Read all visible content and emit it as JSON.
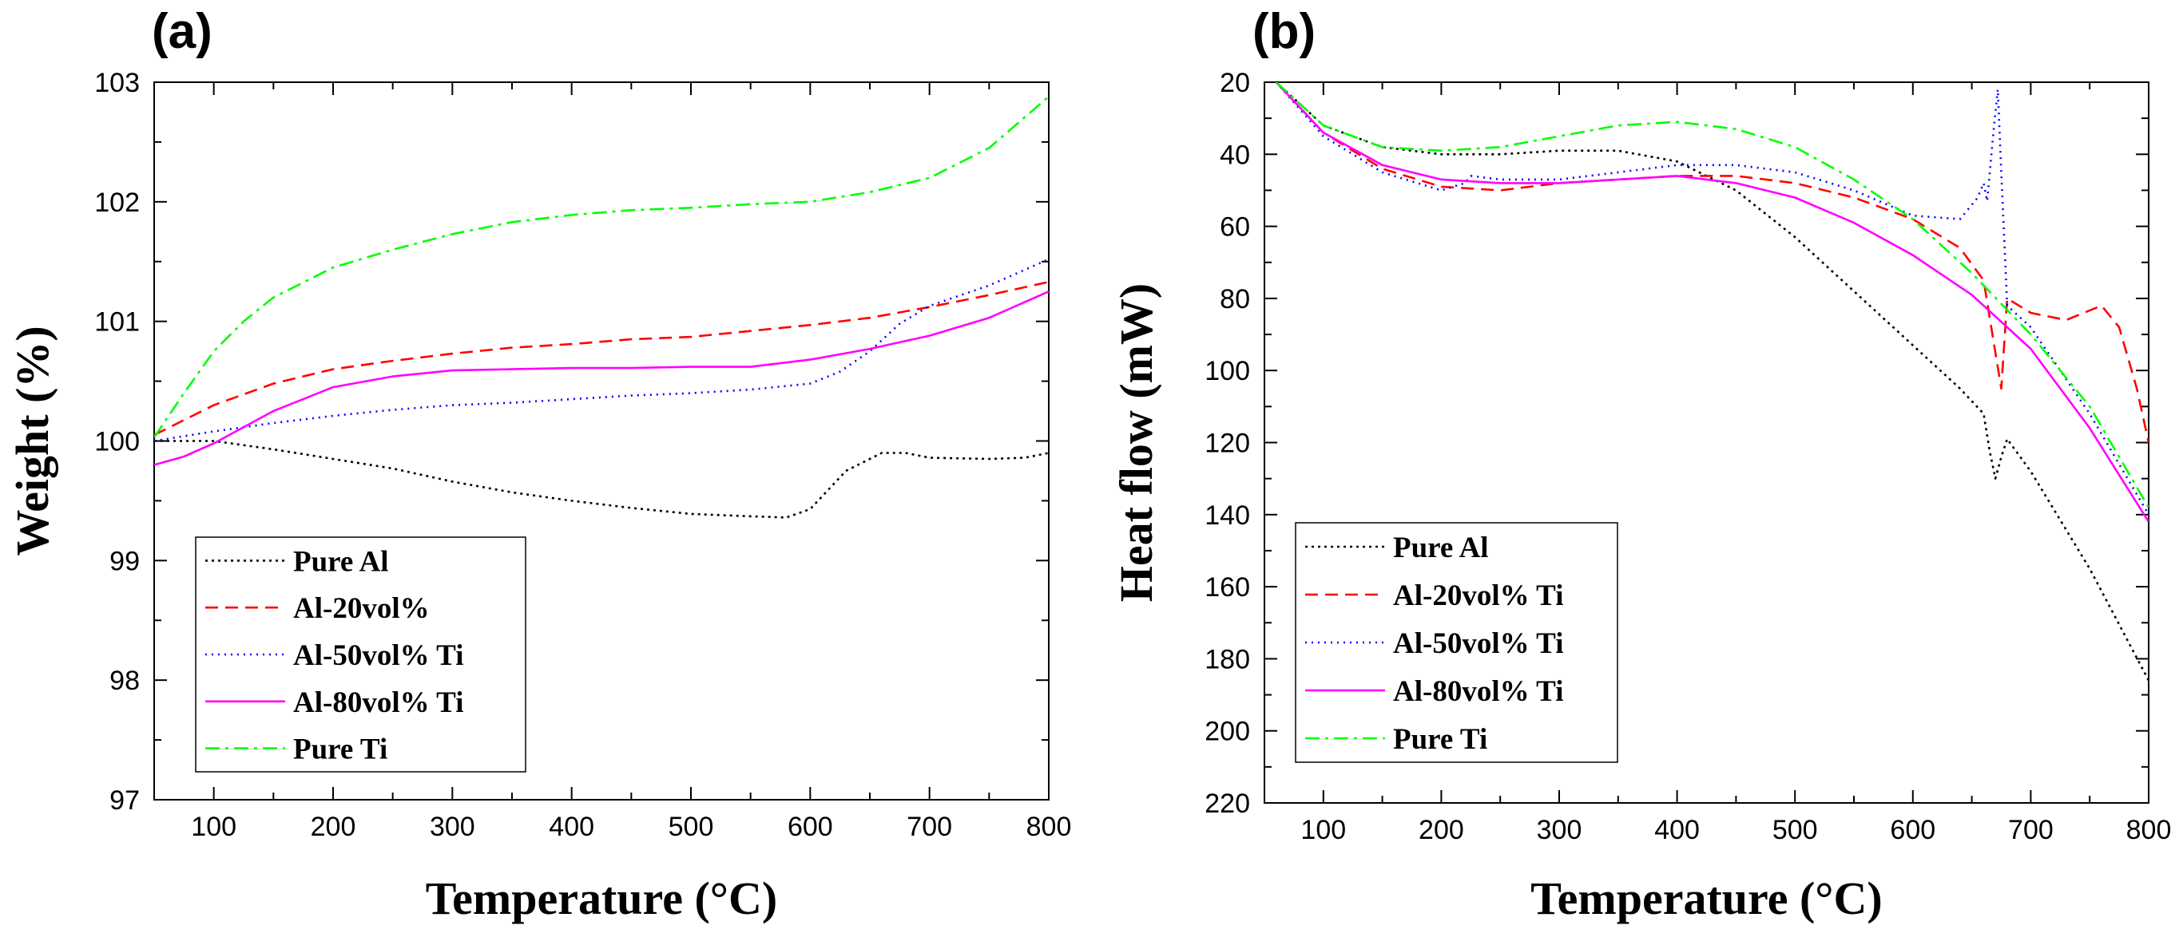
{
  "chart_data": [
    {
      "type": "line",
      "panel_label": "(a)",
      "xlabel": "Temperature (°C)",
      "ylabel": "Weight (%)",
      "xlim": [
        50,
        800
      ],
      "ylim": [
        97,
        103
      ],
      "xticks": [
        100,
        200,
        300,
        400,
        500,
        600,
        700,
        800
      ],
      "yticks": [
        97,
        98,
        99,
        100,
        101,
        102,
        103
      ],
      "legend_position": "bottom-left",
      "series": [
        {
          "name": "Pure Al",
          "color": "#000000",
          "dash": "dotted",
          "x": [
            50,
            100,
            150,
            200,
            250,
            300,
            350,
            400,
            450,
            500,
            550,
            580,
            600,
            630,
            660,
            680,
            700,
            750,
            780,
            790,
            800
          ],
          "y": [
            100.0,
            100.0,
            99.93,
            99.85,
            99.77,
            99.66,
            99.57,
            99.5,
            99.44,
            99.39,
            99.37,
            99.36,
            99.43,
            99.75,
            99.9,
            99.9,
            99.86,
            99.85,
            99.86,
            99.88,
            99.9
          ]
        },
        {
          "name": "Al-20vol%",
          "color": "#ff0000",
          "dash": "dashed",
          "x": [
            50,
            100,
            150,
            200,
            250,
            300,
            350,
            400,
            450,
            500,
            550,
            600,
            650,
            700,
            750,
            800
          ],
          "y": [
            100.05,
            100.3,
            100.48,
            100.6,
            100.67,
            100.73,
            100.78,
            100.81,
            100.85,
            100.87,
            100.92,
            100.97,
            101.03,
            101.12,
            101.22,
            101.33
          ]
        },
        {
          "name": "Al-50vol% Ti",
          "color": "#0000ff",
          "dash": "dotted-fine",
          "x": [
            50,
            100,
            150,
            200,
            250,
            300,
            350,
            400,
            450,
            500,
            550,
            600,
            625,
            650,
            675,
            700,
            750,
            800
          ],
          "y": [
            100.0,
            100.08,
            100.15,
            100.21,
            100.26,
            100.3,
            100.32,
            100.35,
            100.38,
            100.4,
            100.43,
            100.48,
            100.58,
            100.75,
            100.98,
            101.13,
            101.3,
            101.52
          ]
        },
        {
          "name": "Al-80vol% Ti",
          "color": "#ff00ff",
          "dash": "solid",
          "x": [
            50,
            75,
            100,
            150,
            200,
            250,
            300,
            350,
            400,
            450,
            500,
            550,
            600,
            650,
            700,
            750,
            800
          ],
          "y": [
            99.8,
            99.87,
            99.98,
            100.25,
            100.45,
            100.54,
            100.59,
            100.6,
            100.61,
            100.61,
            100.62,
            100.62,
            100.68,
            100.77,
            100.88,
            101.03,
            101.25
          ]
        },
        {
          "name": "Pure Ti",
          "color": "#00ff00",
          "dash": "dash-dot",
          "x": [
            50,
            75,
            100,
            125,
            150,
            200,
            250,
            300,
            350,
            400,
            450,
            500,
            550,
            600,
            650,
            700,
            750,
            800
          ],
          "y": [
            100.03,
            100.4,
            100.75,
            101.0,
            101.2,
            101.45,
            101.6,
            101.73,
            101.83,
            101.89,
            101.93,
            101.95,
            101.98,
            102.0,
            102.08,
            102.2,
            102.45,
            102.88
          ]
        }
      ]
    },
    {
      "type": "line",
      "panel_label": "(b)",
      "xlabel": "Temperature (°C)",
      "ylabel": "Heat flow (mW)",
      "xlim": [
        50,
        800
      ],
      "ylim": [
        220,
        20
      ],
      "xticks": [
        100,
        200,
        300,
        400,
        500,
        600,
        700,
        800
      ],
      "yticks": [
        20,
        40,
        60,
        80,
        100,
        120,
        140,
        160,
        180,
        200,
        220
      ],
      "legend_position": "bottom-left",
      "series": [
        {
          "name": "Pure Al",
          "color": "#000000",
          "dash": "dotted",
          "x": [
            60,
            100,
            150,
            200,
            250,
            300,
            350,
            400,
            450,
            500,
            550,
            600,
            640,
            660,
            665,
            670,
            675,
            680,
            700,
            750,
            800
          ],
          "y": [
            20,
            32,
            38,
            40,
            40,
            39,
            39,
            42,
            50,
            63,
            78,
            93,
            105,
            112,
            122,
            130,
            124,
            119,
            128,
            155,
            186
          ]
        },
        {
          "name": "Al-20vol% Ti",
          "color": "#ff0000",
          "dash": "dashed",
          "x": [
            60,
            100,
            150,
            200,
            250,
            300,
            350,
            400,
            450,
            500,
            550,
            600,
            640,
            660,
            670,
            675,
            680,
            700,
            730,
            760,
            775,
            790,
            800
          ],
          "y": [
            20,
            34,
            44,
            49,
            50,
            48,
            47,
            46,
            46,
            48,
            52,
            58,
            66,
            75,
            95,
            105,
            80,
            84,
            86,
            82,
            88,
            105,
            120
          ]
        },
        {
          "name": "Al-50vol% Ti",
          "color": "#0000ff",
          "dash": "dotted-fine",
          "x": [
            60,
            100,
            150,
            200,
            220,
            225,
            250,
            300,
            350,
            400,
            450,
            500,
            550,
            600,
            640,
            655,
            660,
            663,
            668,
            672,
            675,
            680,
            700,
            750,
            800
          ],
          "y": [
            20,
            35,
            45,
            50,
            48,
            46,
            47,
            47,
            45,
            43,
            43,
            45,
            50,
            57,
            58,
            52,
            48,
            53,
            35,
            22,
            45,
            82,
            88,
            112,
            140
          ]
        },
        {
          "name": "Al-80vol% Ti",
          "color": "#ff00ff",
          "dash": "solid",
          "x": [
            60,
            100,
            150,
            200,
            250,
            300,
            350,
            400,
            450,
            500,
            550,
            600,
            650,
            700,
            750,
            800
          ],
          "y": [
            20,
            34,
            43,
            47,
            48,
            48,
            47,
            46,
            48,
            52,
            59,
            68,
            79,
            94,
            116,
            142
          ]
        },
        {
          "name": "Pure Ti",
          "color": "#00ff00",
          "dash": "dash-dot",
          "x": [
            60,
            100,
            150,
            200,
            250,
            300,
            350,
            400,
            450,
            500,
            550,
            600,
            650,
            700,
            750,
            800
          ],
          "y": [
            20,
            32,
            38,
            39,
            38,
            35,
            32,
            31,
            33,
            38,
            47,
            58,
            73,
            90,
            110,
            138
          ]
        }
      ]
    }
  ]
}
